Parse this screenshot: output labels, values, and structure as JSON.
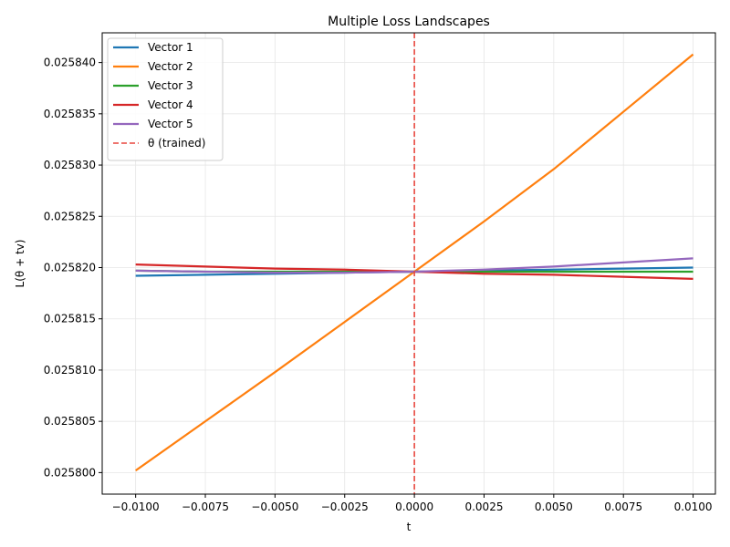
{
  "chart_data": {
    "type": "line",
    "title": "Multiple Loss Landscapes",
    "xlabel": "t",
    "ylabel": "L(θ + tv)",
    "xlim": [
      -0.0112,
      0.0108
    ],
    "ylim": [
      0.0257979,
      0.0258429
    ],
    "x_ticks": [
      -0.01,
      -0.0075,
      -0.005,
      -0.0025,
      0.0,
      0.0025,
      0.005,
      0.0075,
      0.01
    ],
    "x_tick_labels": [
      "−0.0100",
      "−0.0075",
      "−0.0050",
      "−0.0025",
      "0.0000",
      "0.0025",
      "0.0050",
      "0.0075",
      "0.0100"
    ],
    "y_ticks": [
      0.0258,
      0.025805,
      0.02581,
      0.025815,
      0.02582,
      0.025825,
      0.02583,
      0.025835,
      0.02584
    ],
    "y_tick_labels": [
      "0.025800",
      "0.025805",
      "0.025810",
      "0.025815",
      "0.025820",
      "0.025825",
      "0.025830",
      "0.025835",
      "0.025840"
    ],
    "grid": true,
    "legend_position": "top-left",
    "x": [
      -0.01,
      -0.0075,
      -0.005,
      -0.0025,
      0.0,
      0.0025,
      0.005,
      0.0075,
      0.01
    ],
    "series": [
      {
        "name": "Vector 1",
        "color": "#1f77b4",
        "values": [
          0.0258192,
          0.0258193,
          0.0258194,
          0.0258195,
          0.0258196,
          0.0258197,
          0.0258198,
          0.0258199,
          0.02582
        ]
      },
      {
        "name": "Vector 2",
        "color": "#ff7f0e",
        "values": [
          0.0258002,
          0.025805,
          0.0258098,
          0.0258147,
          0.0258196,
          0.0258245,
          0.0258296,
          0.0258352,
          0.0258408
        ]
      },
      {
        "name": "Vector 3",
        "color": "#2ca02c",
        "values": [
          0.0258197,
          0.0258196,
          0.0258196,
          0.0258196,
          0.0258196,
          0.0258196,
          0.0258196,
          0.0258196,
          0.0258196
        ]
      },
      {
        "name": "Vector 4",
        "color": "#d62728",
        "values": [
          0.0258203,
          0.0258201,
          0.0258199,
          0.0258198,
          0.0258196,
          0.0258194,
          0.0258193,
          0.0258191,
          0.0258189
        ]
      },
      {
        "name": "Vector 5",
        "color": "#9467bd",
        "values": [
          0.0258197,
          0.0258196,
          0.0258195,
          0.0258195,
          0.0258196,
          0.0258198,
          0.0258201,
          0.0258205,
          0.0258209
        ]
      }
    ],
    "reference_line": {
      "label": "θ (trained)",
      "x": 0.0,
      "color": "#e8473f",
      "style": "dashed"
    }
  }
}
